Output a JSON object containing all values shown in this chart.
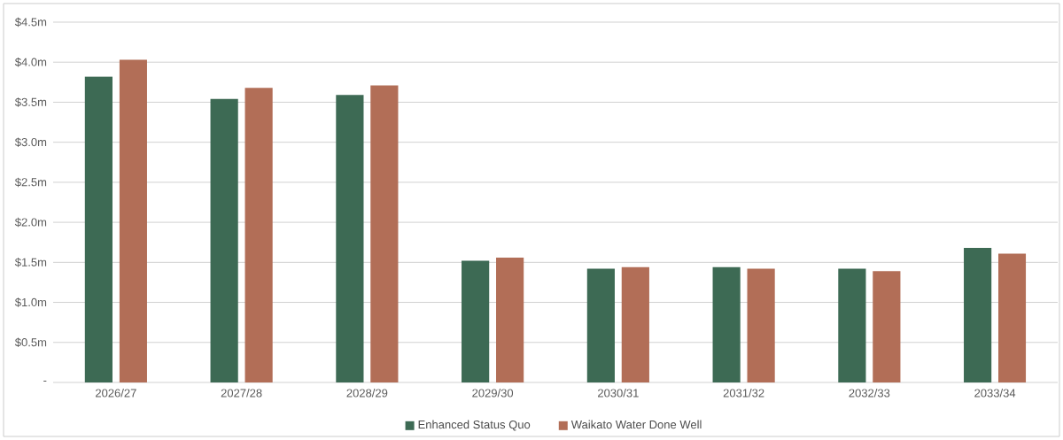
{
  "chart_data": {
    "type": "bar",
    "categories": [
      "2026/27",
      "2027/28",
      "2028/29",
      "2029/30",
      "2030/31",
      "2031/32",
      "2032/33",
      "2033/34"
    ],
    "series": [
      {
        "name": "Enhanced Status Quo",
        "color": "#3d6a54",
        "values": [
          3.82,
          3.54,
          3.59,
          1.52,
          1.42,
          1.44,
          1.42,
          1.68
        ]
      },
      {
        "name": "Waikato Water Done Well",
        "color": "#b26e57",
        "values": [
          4.03,
          3.68,
          3.71,
          1.56,
          1.44,
          1.42,
          1.39,
          1.61
        ]
      }
    ],
    "ylim": [
      0,
      4.5
    ],
    "yticks": [
      {
        "value": 0,
        "label": "-"
      },
      {
        "value": 0.5,
        "label": "$0.5m"
      },
      {
        "value": 1,
        "label": "$1.0m"
      },
      {
        "value": 1.5,
        "label": "$1.5m"
      },
      {
        "value": 2,
        "label": "$2.0m"
      },
      {
        "value": 2.5,
        "label": "$2.5m"
      },
      {
        "value": 3,
        "label": "$3.0m"
      },
      {
        "value": 3.5,
        "label": "$3.5m"
      },
      {
        "value": 4,
        "label": "$4.0m"
      },
      {
        "value": 4.5,
        "label": "$4.5m"
      }
    ],
    "grid": "y",
    "legend": "bottom"
  }
}
